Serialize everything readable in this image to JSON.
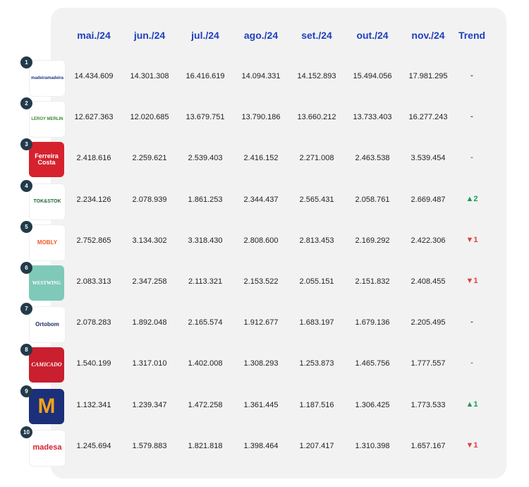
{
  "columns": [
    "mai./24",
    "jun./24",
    "jul./24",
    "ago./24",
    "set./24",
    "out./24",
    "nov./24",
    "Trend"
  ],
  "colors": {
    "header": "#1f3fbf",
    "up": "#1a9a5a",
    "down": "#e43d3d",
    "panel": "#f2f2f2",
    "rank_badge": "#233a4a"
  },
  "rows": [
    {
      "rank": "1",
      "logo": {
        "text": "madeiramadeira",
        "icon": "madeiramadeira-logo"
      },
      "values": [
        "14.434.609",
        "14.301.308",
        "16.416.619",
        "14.094.331",
        "14.152.893",
        "15.494.056",
        "17.981.295"
      ],
      "trend": "-",
      "trend_dir": "neutral"
    },
    {
      "rank": "2",
      "logo": {
        "text": "LEROY MERLIN",
        "icon": "leroy-merlin-logo"
      },
      "values": [
        "12.627.363",
        "12.020.685",
        "13.679.751",
        "13.790.186",
        "13.660.212",
        "13.733.403",
        "16.277.243"
      ],
      "trend": "-",
      "trend_dir": "neutral"
    },
    {
      "rank": "3",
      "logo": {
        "text": "Ferreira Costa",
        "icon": "ferreira-costa-logo"
      },
      "values": [
        "2.418.616",
        "2.259.621",
        "2.539.403",
        "2.416.152",
        "2.271.008",
        "2.463.538",
        "3.539.454"
      ],
      "trend": "-",
      "trend_dir": "neutral-teal"
    },
    {
      "rank": "4",
      "logo": {
        "text": "TOK&STOK",
        "icon": "tok-stok-logo"
      },
      "values": [
        "2.234.126",
        "2.078.939",
        "1.861.253",
        "2.344.437",
        "2.565.431",
        "2.058.761",
        "2.669.487"
      ],
      "trend": "▲2",
      "trend_dir": "up"
    },
    {
      "rank": "5",
      "logo": {
        "text": "MOBLY",
        "icon": "mobly-logo"
      },
      "values": [
        "2.752.865",
        "3.134.302",
        "3.318.430",
        "2.808.600",
        "2.813.453",
        "2.169.292",
        "2.422.306"
      ],
      "trend": "▼1",
      "trend_dir": "down"
    },
    {
      "rank": "6",
      "logo": {
        "text": "WESTWING",
        "icon": "westwing-logo"
      },
      "values": [
        "2.083.313",
        "2.347.258",
        "2.113.321",
        "2.153.522",
        "2.055.151",
        "2.151.832",
        "2.408.455"
      ],
      "trend": "▼1",
      "trend_dir": "down"
    },
    {
      "rank": "7",
      "logo": {
        "text": "Ortobom",
        "icon": "ortobom-logo"
      },
      "values": [
        "2.078.283",
        "1.892.048",
        "2.165.574",
        "1.912.677",
        "1.683.197",
        "1.679.136",
        "2.205.495"
      ],
      "trend": "-",
      "trend_dir": "neutral"
    },
    {
      "rank": "8",
      "logo": {
        "text": "CAMICADO",
        "icon": "camicado-logo"
      },
      "values": [
        "1.540.199",
        "1.317.010",
        "1.402.008",
        "1.308.293",
        "1.253.873",
        "1.465.756",
        "1.777.557"
      ],
      "trend": "-",
      "trend_dir": "neutral-teal"
    },
    {
      "rank": "9",
      "logo": {
        "text": "M",
        "icon": "martins-logo"
      },
      "values": [
        "1.132.341",
        "1.239.347",
        "1.472.258",
        "1.361.445",
        "1.187.516",
        "1.306.425",
        "1.773.533"
      ],
      "trend": "▲1",
      "trend_dir": "up"
    },
    {
      "rank": "10",
      "logo": {
        "text": "madesa",
        "icon": "madesa-logo"
      },
      "values": [
        "1.245.694",
        "1.579.883",
        "1.821.818",
        "1.398.464",
        "1.207.417",
        "1.310.398",
        "1.657.167"
      ],
      "trend": "▼1",
      "trend_dir": "down"
    }
  ]
}
